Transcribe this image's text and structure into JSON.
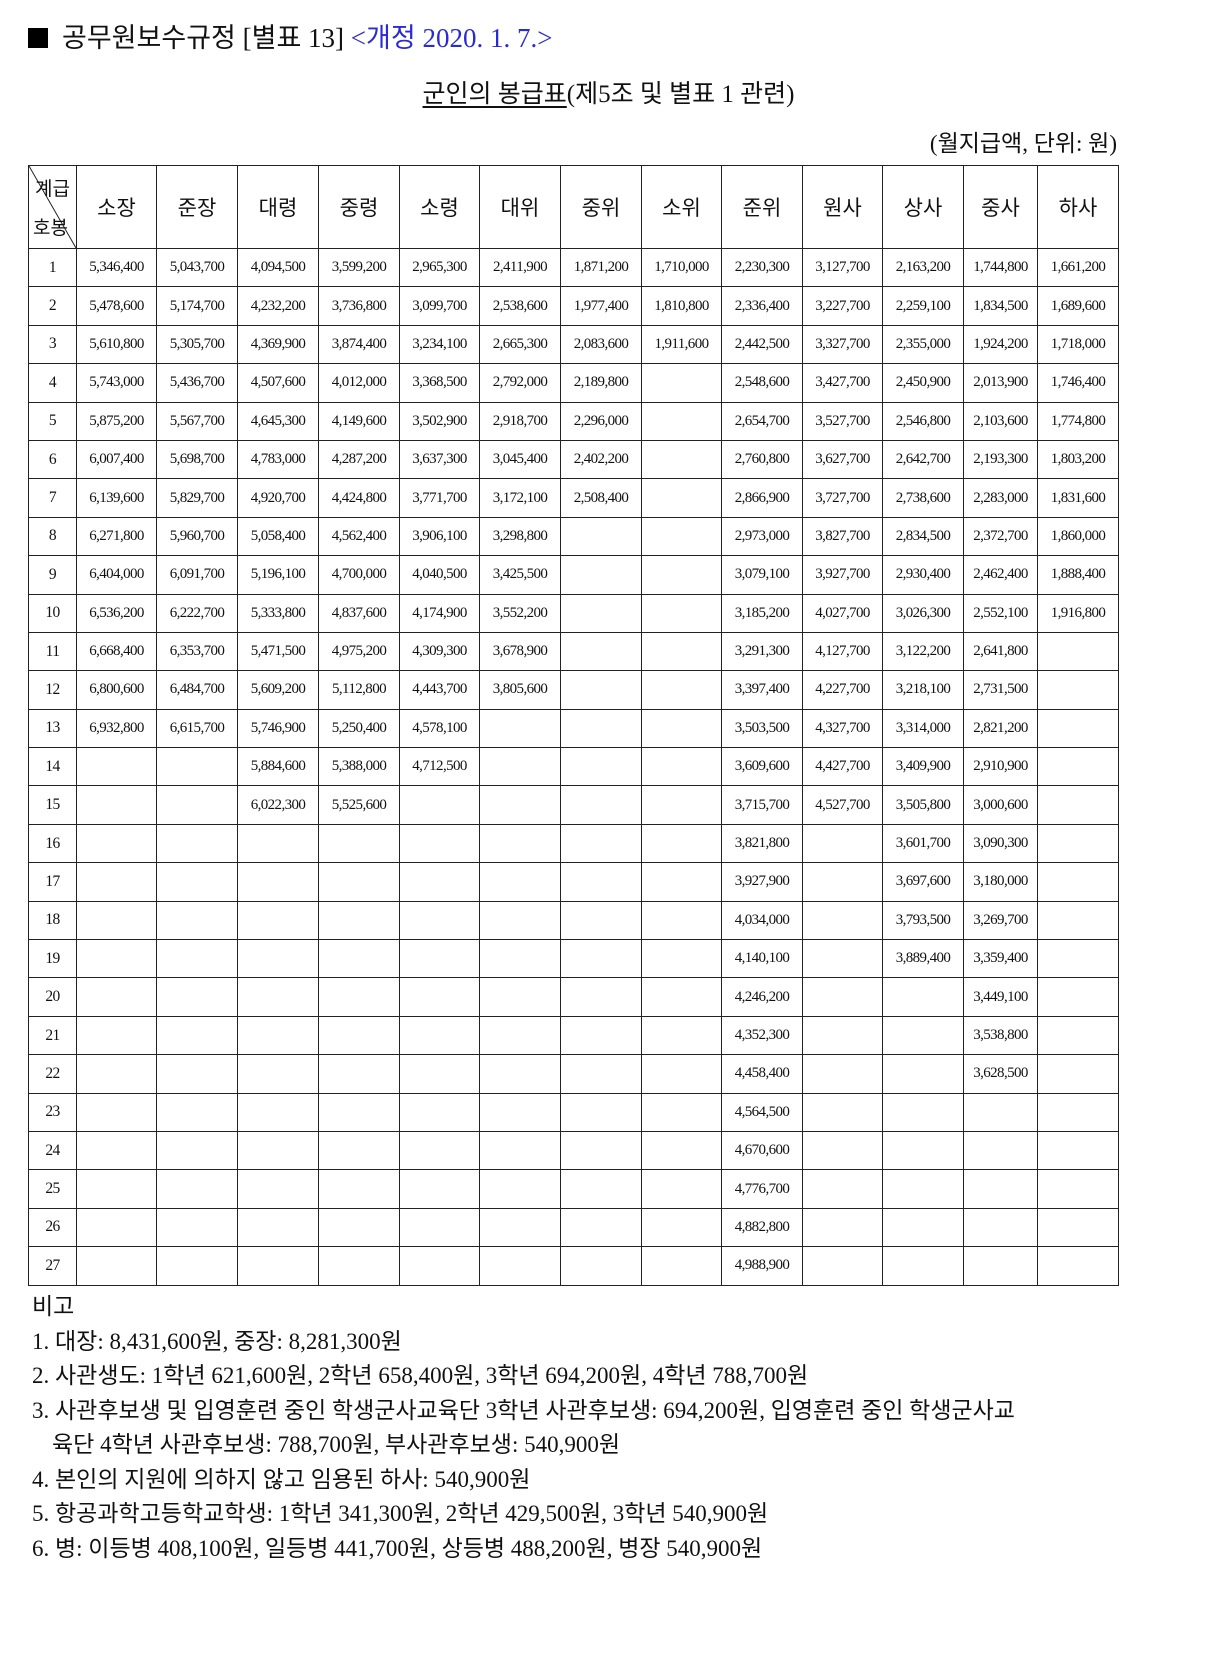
{
  "heading": {
    "text": "공무원보수규정 [별표 13]",
    "amendment": "<개정 2020. 1. 7.>",
    "amendment_color": "#2b2bd6"
  },
  "title": {
    "main": "군인의 봉급표",
    "sub": "(제5조 및 별표 1 관련)"
  },
  "unit": "(월지급액, 단위: 원)",
  "table": {
    "corner_top": "계급",
    "corner_bottom": "호봉",
    "columns": [
      "소장",
      "준장",
      "대령",
      "중령",
      "소령",
      "대위",
      "중위",
      "소위",
      "준위",
      "원사",
      "상사",
      "중사",
      "하사"
    ],
    "rows": [
      [
        "1",
        "5,346,400",
        "5,043,700",
        "4,094,500",
        "3,599,200",
        "2,965,300",
        "2,411,900",
        "1,871,200",
        "1,710,000",
        "2,230,300",
        "3,127,700",
        "2,163,200",
        "1,744,800",
        "1,661,200"
      ],
      [
        "2",
        "5,478,600",
        "5,174,700",
        "4,232,200",
        "3,736,800",
        "3,099,700",
        "2,538,600",
        "1,977,400",
        "1,810,800",
        "2,336,400",
        "3,227,700",
        "2,259,100",
        "1,834,500",
        "1,689,600"
      ],
      [
        "3",
        "5,610,800",
        "5,305,700",
        "4,369,900",
        "3,874,400",
        "3,234,100",
        "2,665,300",
        "2,083,600",
        "1,911,600",
        "2,442,500",
        "3,327,700",
        "2,355,000",
        "1,924,200",
        "1,718,000"
      ],
      [
        "4",
        "5,743,000",
        "5,436,700",
        "4,507,600",
        "4,012,000",
        "3,368,500",
        "2,792,000",
        "2,189,800",
        "",
        "2,548,600",
        "3,427,700",
        "2,450,900",
        "2,013,900",
        "1,746,400"
      ],
      [
        "5",
        "5,875,200",
        "5,567,700",
        "4,645,300",
        "4,149,600",
        "3,502,900",
        "2,918,700",
        "2,296,000",
        "",
        "2,654,700",
        "3,527,700",
        "2,546,800",
        "2,103,600",
        "1,774,800"
      ],
      [
        "6",
        "6,007,400",
        "5,698,700",
        "4,783,000",
        "4,287,200",
        "3,637,300",
        "3,045,400",
        "2,402,200",
        "",
        "2,760,800",
        "3,627,700",
        "2,642,700",
        "2,193,300",
        "1,803,200"
      ],
      [
        "7",
        "6,139,600",
        "5,829,700",
        "4,920,700",
        "4,424,800",
        "3,771,700",
        "3,172,100",
        "2,508,400",
        "",
        "2,866,900",
        "3,727,700",
        "2,738,600",
        "2,283,000",
        "1,831,600"
      ],
      [
        "8",
        "6,271,800",
        "5,960,700",
        "5,058,400",
        "4,562,400",
        "3,906,100",
        "3,298,800",
        "",
        "",
        "2,973,000",
        "3,827,700",
        "2,834,500",
        "2,372,700",
        "1,860,000"
      ],
      [
        "9",
        "6,404,000",
        "6,091,700",
        "5,196,100",
        "4,700,000",
        "4,040,500",
        "3,425,500",
        "",
        "",
        "3,079,100",
        "3,927,700",
        "2,930,400",
        "2,462,400",
        "1,888,400"
      ],
      [
        "10",
        "6,536,200",
        "6,222,700",
        "5,333,800",
        "4,837,600",
        "4,174,900",
        "3,552,200",
        "",
        "",
        "3,185,200",
        "4,027,700",
        "3,026,300",
        "2,552,100",
        "1,916,800"
      ],
      [
        "11",
        "6,668,400",
        "6,353,700",
        "5,471,500",
        "4,975,200",
        "4,309,300",
        "3,678,900",
        "",
        "",
        "3,291,300",
        "4,127,700",
        "3,122,200",
        "2,641,800",
        ""
      ],
      [
        "12",
        "6,800,600",
        "6,484,700",
        "5,609,200",
        "5,112,800",
        "4,443,700",
        "3,805,600",
        "",
        "",
        "3,397,400",
        "4,227,700",
        "3,218,100",
        "2,731,500",
        ""
      ],
      [
        "13",
        "6,932,800",
        "6,615,700",
        "5,746,900",
        "5,250,400",
        "4,578,100",
        "",
        "",
        "",
        "3,503,500",
        "4,327,700",
        "3,314,000",
        "2,821,200",
        ""
      ],
      [
        "14",
        "",
        "",
        "5,884,600",
        "5,388,000",
        "4,712,500",
        "",
        "",
        "",
        "3,609,600",
        "4,427,700",
        "3,409,900",
        "2,910,900",
        ""
      ],
      [
        "15",
        "",
        "",
        "6,022,300",
        "5,525,600",
        "",
        "",
        "",
        "",
        "3,715,700",
        "4,527,700",
        "3,505,800",
        "3,000,600",
        ""
      ],
      [
        "16",
        "",
        "",
        "",
        "",
        "",
        "",
        "",
        "",
        "3,821,800",
        "",
        "3,601,700",
        "3,090,300",
        ""
      ],
      [
        "17",
        "",
        "",
        "",
        "",
        "",
        "",
        "",
        "",
        "3,927,900",
        "",
        "3,697,600",
        "3,180,000",
        ""
      ],
      [
        "18",
        "",
        "",
        "",
        "",
        "",
        "",
        "",
        "",
        "4,034,000",
        "",
        "3,793,500",
        "3,269,700",
        ""
      ],
      [
        "19",
        "",
        "",
        "",
        "",
        "",
        "",
        "",
        "",
        "4,140,100",
        "",
        "3,889,400",
        "3,359,400",
        ""
      ],
      [
        "20",
        "",
        "",
        "",
        "",
        "",
        "",
        "",
        "",
        "4,246,200",
        "",
        "",
        "3,449,100",
        ""
      ],
      [
        "21",
        "",
        "",
        "",
        "",
        "",
        "",
        "",
        "",
        "4,352,300",
        "",
        "",
        "3,538,800",
        ""
      ],
      [
        "22",
        "",
        "",
        "",
        "",
        "",
        "",
        "",
        "",
        "4,458,400",
        "",
        "",
        "3,628,500",
        ""
      ],
      [
        "23",
        "",
        "",
        "",
        "",
        "",
        "",
        "",
        "",
        "4,564,500",
        "",
        "",
        "",
        ""
      ],
      [
        "24",
        "",
        "",
        "",
        "",
        "",
        "",
        "",
        "",
        "4,670,600",
        "",
        "",
        "",
        ""
      ],
      [
        "25",
        "",
        "",
        "",
        "",
        "",
        "",
        "",
        "",
        "4,776,700",
        "",
        "",
        "",
        ""
      ],
      [
        "26",
        "",
        "",
        "",
        "",
        "",
        "",
        "",
        "",
        "4,882,800",
        "",
        "",
        "",
        ""
      ],
      [
        "27",
        "",
        "",
        "",
        "",
        "",
        "",
        "",
        "",
        "4,988,900",
        "",
        "",
        "",
        ""
      ]
    ]
  },
  "notes": {
    "heading": "비고",
    "items": [
      "1. 대장: 8,431,600원,  중장: 8,281,300원",
      "2. 사관생도: 1학년 621,600원, 2학년 658,400원, 3학년 694,200원, 4학년 788,700원",
      "3. 사관후보생 및 입영훈련 중인 학생군사교육단 3학년 사관후보생: 694,200원, 입영훈련 중인 학생군사교",
      "육단 4학년 사관후보생: 788,700원, 부사관후보생: 540,900원",
      "4. 본인의 지원에 의하지 않고 임용된 하사: 540,900원",
      "5. 항공과학고등학교학생: 1학년 341,300원, 2학년 429,500원, 3학년 540,900원",
      "6. 병: 이등병 408,100원, 일등병 441,700원, 상등병 488,200원, 병장 540,900원"
    ]
  }
}
